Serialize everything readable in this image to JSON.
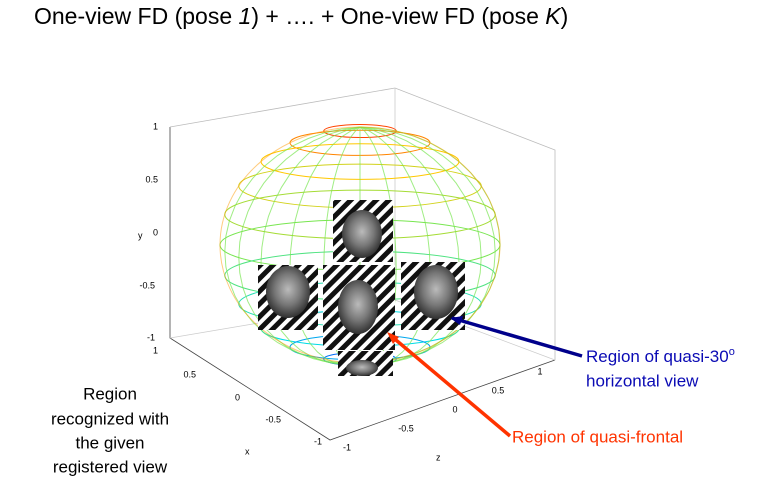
{
  "title": {
    "parts": [
      "One-view FD (pose ",
      "1",
      ") + …. + One-view FD (pose ",
      "K",
      ")"
    ]
  },
  "axes": {
    "y": {
      "label": "y",
      "ticks": [
        "1",
        "0.5",
        "0",
        "-0.5",
        "-1"
      ]
    },
    "x": {
      "label": "x",
      "ticks": [
        "1",
        "0.5",
        "0",
        "-0.5",
        "-1"
      ]
    },
    "z": {
      "label": "z",
      "ticks": [
        "-1",
        "-0.5",
        "0",
        "0.5",
        "1"
      ]
    }
  },
  "annotations": {
    "quasi_30": {
      "lines": [
        "Region of quasi-30",
        "horizontal view"
      ],
      "superscript": "o"
    },
    "quasi_frontal": {
      "text": "Region of quasi-frontal"
    },
    "recognized": {
      "lines": [
        "Region",
        "recognized with",
        "the given",
        "registered view"
      ]
    }
  }
}
